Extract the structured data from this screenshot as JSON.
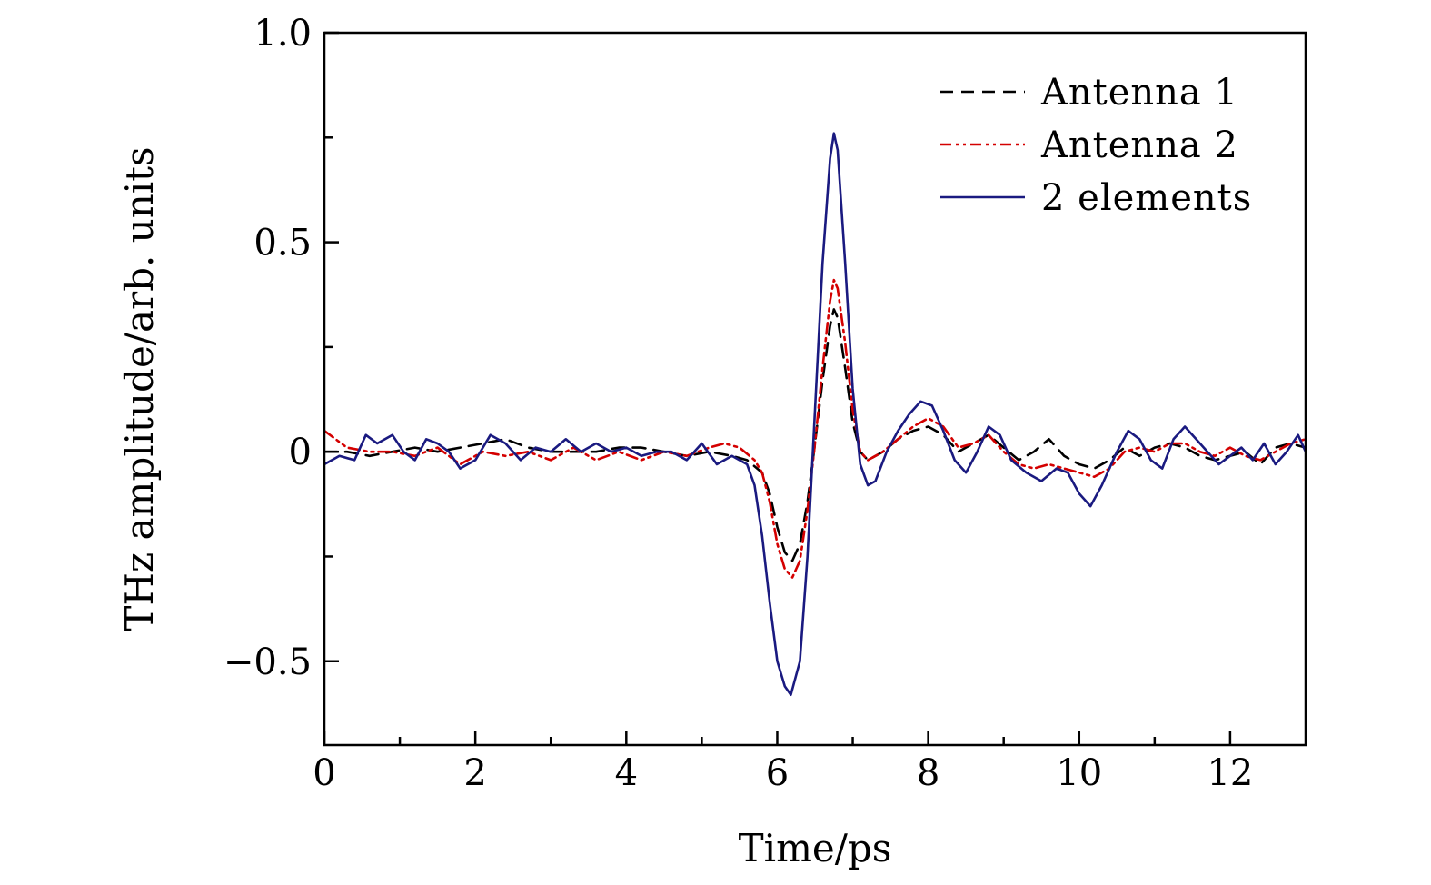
{
  "chart_data": {
    "type": "line",
    "title": "",
    "xlabel": "Time/ps",
    "ylabel": "THz amplitude/arb. units",
    "xlim": [
      0,
      13
    ],
    "ylim": [
      -0.7,
      1.0
    ],
    "x_ticks": [
      0,
      2,
      4,
      6,
      8,
      10,
      12
    ],
    "x_tick_labels": [
      "0",
      "2",
      "4",
      "6",
      "8",
      "10",
      "12"
    ],
    "x_minor_ticks": [
      1,
      3,
      5,
      7,
      9,
      11
    ],
    "y_ticks": [
      -0.5,
      0,
      0.5,
      1.0
    ],
    "y_tick_labels": [
      "−0.5",
      "0",
      "0.5",
      "1.0"
    ],
    "y_minor_ticks": [
      -0.25,
      0.25,
      0.75
    ],
    "legend_position": "top-right",
    "grid": false,
    "series": [
      {
        "name": "Antenna 1",
        "color": "#000000",
        "style": "dashed",
        "points": [
          [
            0,
            0.0
          ],
          [
            0.3,
            0.0
          ],
          [
            0.6,
            -0.01
          ],
          [
            0.9,
            0.0
          ],
          [
            1.2,
            0.01
          ],
          [
            1.5,
            0.0
          ],
          [
            1.8,
            0.01
          ],
          [
            2.1,
            0.02
          ],
          [
            2.4,
            0.03
          ],
          [
            2.7,
            0.01
          ],
          [
            3.0,
            0.0
          ],
          [
            3.3,
            0.0
          ],
          [
            3.6,
            0.0
          ],
          [
            3.9,
            0.01
          ],
          [
            4.2,
            0.01
          ],
          [
            4.5,
            0.0
          ],
          [
            4.8,
            -0.01
          ],
          [
            5.1,
            0.0
          ],
          [
            5.4,
            -0.01
          ],
          [
            5.6,
            -0.02
          ],
          [
            5.8,
            -0.05
          ],
          [
            5.9,
            -0.1
          ],
          [
            6.0,
            -0.18
          ],
          [
            6.1,
            -0.24
          ],
          [
            6.2,
            -0.26
          ],
          [
            6.3,
            -0.22
          ],
          [
            6.4,
            -0.12
          ],
          [
            6.5,
            0.02
          ],
          [
            6.6,
            0.17
          ],
          [
            6.7,
            0.3
          ],
          [
            6.75,
            0.34
          ],
          [
            6.8,
            0.32
          ],
          [
            6.9,
            0.2
          ],
          [
            7.0,
            0.07
          ],
          [
            7.1,
            0.0
          ],
          [
            7.2,
            -0.02
          ],
          [
            7.4,
            0.0
          ],
          [
            7.6,
            0.03
          ],
          [
            7.8,
            0.05
          ],
          [
            8.0,
            0.06
          ],
          [
            8.2,
            0.04
          ],
          [
            8.4,
            0.0
          ],
          [
            8.6,
            0.02
          ],
          [
            8.8,
            0.04
          ],
          [
            9.0,
            0.01
          ],
          [
            9.2,
            -0.02
          ],
          [
            9.4,
            0.0
          ],
          [
            9.6,
            0.03
          ],
          [
            9.8,
            -0.01
          ],
          [
            10.0,
            -0.03
          ],
          [
            10.2,
            -0.04
          ],
          [
            10.4,
            -0.02
          ],
          [
            10.6,
            0.01
          ],
          [
            10.8,
            -0.01
          ],
          [
            11.0,
            0.01
          ],
          [
            11.2,
            0.02
          ],
          [
            11.4,
            0.01
          ],
          [
            11.6,
            -0.01
          ],
          [
            11.8,
            -0.02
          ],
          [
            12.0,
            -0.01
          ],
          [
            12.2,
            0.0
          ],
          [
            12.4,
            -0.03
          ],
          [
            12.6,
            0.01
          ],
          [
            12.8,
            0.02
          ],
          [
            13.0,
            0.01
          ]
        ]
      },
      {
        "name": "Antenna 2",
        "color": "#d40000",
        "style": "dash-dot-dot",
        "points": [
          [
            0,
            0.05
          ],
          [
            0.3,
            0.01
          ],
          [
            0.6,
            0.0
          ],
          [
            0.9,
            0.0
          ],
          [
            1.2,
            -0.01
          ],
          [
            1.5,
            0.01
          ],
          [
            1.8,
            -0.03
          ],
          [
            2.1,
            0.0
          ],
          [
            2.4,
            -0.01
          ],
          [
            2.7,
            0.0
          ],
          [
            3.0,
            -0.02
          ],
          [
            3.3,
            0.01
          ],
          [
            3.6,
            -0.02
          ],
          [
            3.9,
            0.0
          ],
          [
            4.2,
            -0.02
          ],
          [
            4.5,
            0.0
          ],
          [
            4.8,
            -0.01
          ],
          [
            5.1,
            0.01
          ],
          [
            5.3,
            0.02
          ],
          [
            5.5,
            0.01
          ],
          [
            5.7,
            -0.02
          ],
          [
            5.8,
            -0.05
          ],
          [
            5.9,
            -0.12
          ],
          [
            6.0,
            -0.22
          ],
          [
            6.1,
            -0.28
          ],
          [
            6.2,
            -0.3
          ],
          [
            6.3,
            -0.26
          ],
          [
            6.4,
            -0.14
          ],
          [
            6.5,
            0.02
          ],
          [
            6.6,
            0.2
          ],
          [
            6.7,
            0.36
          ],
          [
            6.75,
            0.41
          ],
          [
            6.8,
            0.39
          ],
          [
            6.9,
            0.26
          ],
          [
            7.0,
            0.1
          ],
          [
            7.1,
            0.0
          ],
          [
            7.2,
            -0.02
          ],
          [
            7.4,
            0.0
          ],
          [
            7.6,
            0.03
          ],
          [
            7.8,
            0.06
          ],
          [
            8.0,
            0.08
          ],
          [
            8.2,
            0.06
          ],
          [
            8.4,
            0.01
          ],
          [
            8.6,
            0.02
          ],
          [
            8.8,
            0.04
          ],
          [
            9.0,
            0.0
          ],
          [
            9.2,
            -0.03
          ],
          [
            9.4,
            -0.04
          ],
          [
            9.6,
            -0.03
          ],
          [
            9.8,
            -0.04
          ],
          [
            10.0,
            -0.05
          ],
          [
            10.2,
            -0.06
          ],
          [
            10.4,
            -0.04
          ],
          [
            10.6,
            0.0
          ],
          [
            10.8,
            0.01
          ],
          [
            11.0,
            0.0
          ],
          [
            11.2,
            0.02
          ],
          [
            11.4,
            0.02
          ],
          [
            11.6,
            0.0
          ],
          [
            11.8,
            -0.01
          ],
          [
            12.0,
            0.01
          ],
          [
            12.2,
            -0.01
          ],
          [
            12.4,
            -0.02
          ],
          [
            12.6,
            0.0
          ],
          [
            12.8,
            0.02
          ],
          [
            13.0,
            0.03
          ]
        ]
      },
      {
        "name": "2 elements",
        "color": "#1a1a80",
        "style": "solid",
        "points": [
          [
            0,
            -0.03
          ],
          [
            0.2,
            -0.01
          ],
          [
            0.4,
            -0.02
          ],
          [
            0.55,
            0.04
          ],
          [
            0.7,
            0.02
          ],
          [
            0.9,
            0.04
          ],
          [
            1.05,
            0.0
          ],
          [
            1.2,
            -0.02
          ],
          [
            1.35,
            0.03
          ],
          [
            1.5,
            0.02
          ],
          [
            1.65,
            0.0
          ],
          [
            1.8,
            -0.04
          ],
          [
            2.0,
            -0.02
          ],
          [
            2.2,
            0.04
          ],
          [
            2.4,
            0.02
          ],
          [
            2.6,
            -0.02
          ],
          [
            2.8,
            0.01
          ],
          [
            3.0,
            0.0
          ],
          [
            3.2,
            0.03
          ],
          [
            3.4,
            0.0
          ],
          [
            3.6,
            0.02
          ],
          [
            3.8,
            0.0
          ],
          [
            4.0,
            0.01
          ],
          [
            4.2,
            -0.01
          ],
          [
            4.4,
            0.0
          ],
          [
            4.6,
            0.0
          ],
          [
            4.8,
            -0.02
          ],
          [
            5.0,
            0.02
          ],
          [
            5.2,
            -0.03
          ],
          [
            5.4,
            -0.01
          ],
          [
            5.6,
            -0.03
          ],
          [
            5.7,
            -0.08
          ],
          [
            5.8,
            -0.2
          ],
          [
            5.9,
            -0.36
          ],
          [
            6.0,
            -0.5
          ],
          [
            6.1,
            -0.56
          ],
          [
            6.18,
            -0.58
          ],
          [
            6.3,
            -0.5
          ],
          [
            6.4,
            -0.25
          ],
          [
            6.5,
            0.1
          ],
          [
            6.6,
            0.45
          ],
          [
            6.7,
            0.7
          ],
          [
            6.75,
            0.76
          ],
          [
            6.8,
            0.72
          ],
          [
            6.9,
            0.45
          ],
          [
            7.0,
            0.15
          ],
          [
            7.1,
            -0.03
          ],
          [
            7.2,
            -0.08
          ],
          [
            7.3,
            -0.07
          ],
          [
            7.45,
            0.0
          ],
          [
            7.6,
            0.05
          ],
          [
            7.75,
            0.09
          ],
          [
            7.9,
            0.12
          ],
          [
            8.05,
            0.11
          ],
          [
            8.2,
            0.05
          ],
          [
            8.35,
            -0.02
          ],
          [
            8.5,
            -0.05
          ],
          [
            8.65,
            0.0
          ],
          [
            8.8,
            0.06
          ],
          [
            8.95,
            0.04
          ],
          [
            9.1,
            -0.02
          ],
          [
            9.3,
            -0.05
          ],
          [
            9.5,
            -0.07
          ],
          [
            9.7,
            -0.04
          ],
          [
            9.85,
            -0.05
          ],
          [
            10.0,
            -0.1
          ],
          [
            10.15,
            -0.13
          ],
          [
            10.3,
            -0.08
          ],
          [
            10.5,
            0.0
          ],
          [
            10.65,
            0.05
          ],
          [
            10.8,
            0.03
          ],
          [
            10.95,
            -0.02
          ],
          [
            11.1,
            -0.04
          ],
          [
            11.25,
            0.03
          ],
          [
            11.4,
            0.06
          ],
          [
            11.55,
            0.03
          ],
          [
            11.7,
            0.0
          ],
          [
            11.85,
            -0.03
          ],
          [
            12.0,
            -0.01
          ],
          [
            12.15,
            0.01
          ],
          [
            12.3,
            -0.02
          ],
          [
            12.45,
            0.02
          ],
          [
            12.6,
            -0.03
          ],
          [
            12.75,
            0.0
          ],
          [
            12.9,
            0.04
          ],
          [
            13.0,
            0.0
          ]
        ]
      }
    ]
  }
}
